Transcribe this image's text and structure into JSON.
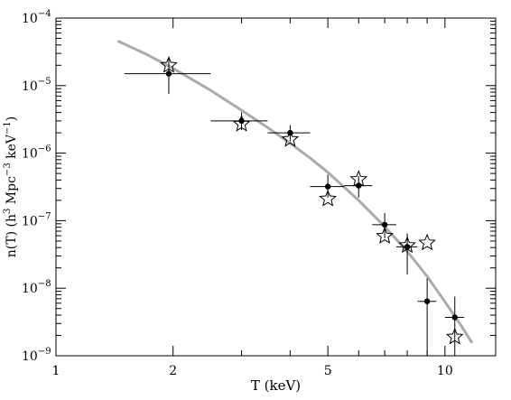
{
  "chart_data": {
    "type": "scatter",
    "x_scale": "log",
    "y_scale": "log",
    "xlim": [
      1,
      13.5
    ],
    "ylim": [
      1e-09,
      0.0001
    ],
    "xlabel": "T (keV)",
    "ylabel": {
      "base": "n(T) (h",
      "p1": "3",
      "mid": " Mpc",
      "p2": "−3",
      "mid2": " keV",
      "p3": "−1",
      "end": ")"
    },
    "x_ticks": [
      {
        "value": 1,
        "label": "1"
      },
      {
        "value": 2,
        "label": "2"
      },
      {
        "value": 5,
        "label": "5"
      },
      {
        "value": 10,
        "label": "10"
      }
    ],
    "y_ticks": [
      {
        "value": 1e-09,
        "mantissa": "10",
        "exp": "−9"
      },
      {
        "value": 1e-08,
        "mantissa": "10",
        "exp": "−8"
      },
      {
        "value": 1e-07,
        "mantissa": "10",
        "exp": "−7"
      },
      {
        "value": 1e-06,
        "mantissa": "10",
        "exp": "−6"
      },
      {
        "value": 1e-05,
        "mantissa": "10",
        "exp": "−5"
      },
      {
        "value": 0.0001,
        "mantissa": "10",
        "exp": "−4"
      }
    ],
    "grid": false,
    "colors": {
      "points": "#000000",
      "model_curve": "#aaaaaa"
    },
    "measured_points": [
      {
        "x": 1.95,
        "y": 1.5e-05,
        "xerr": [
          1.5,
          2.5
        ],
        "yerr": [
          7.5e-06,
          2.6e-05
        ]
      },
      {
        "x": 3.0,
        "y": 3e-06,
        "xerr": [
          2.5,
          3.5
        ],
        "yerr": [
          2.2e-06,
          4e-06
        ]
      },
      {
        "x": 4.0,
        "y": 2e-06,
        "xerr": [
          3.5,
          4.5
        ],
        "yerr": [
          1.5e-06,
          2.6e-06
        ]
      },
      {
        "x": 5.0,
        "y": 3.2e-07,
        "xerr": [
          4.5,
          5.5
        ],
        "yerr": [
          2.2e-07,
          4.8e-07
        ]
      },
      {
        "x": 6.0,
        "y": 3.3e-07,
        "xerr": [
          5.5,
          6.5
        ],
        "yerr": [
          2.2e-07,
          4.6e-07
        ]
      },
      {
        "x": 7.0,
        "y": 8.7e-08,
        "xerr": [
          6.5,
          7.5
        ],
        "yerr": [
          5.5e-08,
          1.3e-07
        ]
      },
      {
        "x": 8.0,
        "y": 4.1e-08,
        "xerr": [
          7.5,
          8.5
        ],
        "yerr": [
          1.6e-08,
          6.5e-08
        ]
      },
      {
        "x": 9.0,
        "y": 6.4e-09,
        "xerr": [
          8.5,
          9.5
        ],
        "yerr": [
          1e-09,
          1.4e-08
        ]
      },
      {
        "x": 10.6,
        "y": 3.7e-09,
        "xerr": [
          10.0,
          11.2
        ],
        "yerr": [
          1e-09,
          7.5e-09
        ]
      }
    ],
    "comparison_points": [
      {
        "x": 1.95,
        "y": 2e-05
      },
      {
        "x": 3.0,
        "y": 2.7e-06
      },
      {
        "x": 4.0,
        "y": 1.6e-06
      },
      {
        "x": 5.0,
        "y": 2.1e-07
      },
      {
        "x": 6.0,
        "y": 4.1e-07
      },
      {
        "x": 7.0,
        "y": 5.9e-08
      },
      {
        "x": 8.0,
        "y": 4.3e-08
      },
      {
        "x": 9.0,
        "y": 4.7e-08
      },
      {
        "x": 10.6,
        "y": 1.9e-09
      }
    ],
    "model_curve": [
      {
        "x": 1.45,
        "y": 4.5e-05
      },
      {
        "x": 1.7,
        "y": 2.95e-05
      },
      {
        "x": 2.0,
        "y": 1.8e-05
      },
      {
        "x": 2.5,
        "y": 8.5e-06
      },
      {
        "x": 3.0,
        "y": 4.3e-06
      },
      {
        "x": 3.5,
        "y": 2.4e-06
      },
      {
        "x": 4.0,
        "y": 1.4e-06
      },
      {
        "x": 4.5,
        "y": 8.5e-07
      },
      {
        "x": 5.0,
        "y": 5.2e-07
      },
      {
        "x": 6.0,
        "y": 2e-07
      },
      {
        "x": 7.0,
        "y": 8.2e-08
      },
      {
        "x": 8.0,
        "y": 3.5e-08
      },
      {
        "x": 9.0,
        "y": 1.5e-08
      },
      {
        "x": 10.0,
        "y": 6.3e-09
      },
      {
        "x": 11.0,
        "y": 2.8e-09
      },
      {
        "x": 11.7,
        "y": 1.6e-09
      }
    ]
  }
}
